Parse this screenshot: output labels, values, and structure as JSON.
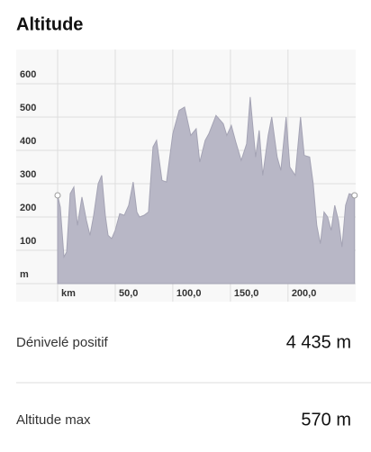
{
  "title": "Altitude",
  "chart_data": {
    "type": "area",
    "x": [
      0,
      2.3,
      5.5,
      7.8,
      10.9,
      14.1,
      17.2,
      21.1,
      25,
      28.1,
      31.3,
      35.2,
      38.3,
      41.4,
      43.8,
      46.9,
      50,
      53.9,
      57.8,
      61.7,
      65.6,
      68.8,
      71.1,
      75,
      78.9,
      82.8,
      85.9,
      90.6,
      94.5,
      100,
      105.5,
      110.2,
      115.6,
      120.3,
      123.4,
      128.1,
      131.3,
      137.5,
      143.8,
      146.9,
      150.8,
      154.7,
      159.4,
      164.1,
      167.2,
      171.9,
      175,
      178.1,
      182.8,
      185.9,
      190.6,
      193.8,
      198.4,
      201.6,
      206.3,
      210.9,
      214.1,
      218.8,
      221.9,
      225,
      228.1,
      231.3,
      234.4,
      237.5,
      240.6,
      243.8,
      246.9,
      250,
      253.1,
      257.8
    ],
    "values": [
      265,
      230,
      80,
      95,
      270,
      290,
      175,
      260,
      190,
      145,
      205,
      300,
      325,
      205,
      145,
      135,
      160,
      210,
      205,
      235,
      305,
      215,
      200,
      205,
      215,
      410,
      430,
      310,
      305,
      450,
      520,
      530,
      445,
      465,
      365,
      430,
      450,
      505,
      480,
      445,
      475,
      425,
      370,
      420,
      560,
      380,
      460,
      325,
      445,
      500,
      380,
      340,
      500,
      350,
      325,
      500,
      385,
      380,
      300,
      175,
      120,
      215,
      200,
      160,
      235,
      190,
      110,
      235,
      270,
      265
    ],
    "color": "#b8b7c6",
    "xlim": [
      0,
      258
    ],
    "ylim": [
      0,
      700
    ],
    "xticks": [
      {
        "value": 0,
        "label": "km"
      },
      {
        "value": 50,
        "label": "50,0"
      },
      {
        "value": 100,
        "label": "100,0"
      },
      {
        "value": 150,
        "label": "150,0"
      },
      {
        "value": 200,
        "label": "200,0"
      }
    ],
    "yticks": [
      {
        "value": 0,
        "label": "m"
      },
      100,
      200,
      300,
      400,
      500,
      600
    ],
    "grid": true
  },
  "stats": [
    {
      "label": "Dénivelé positif",
      "value": "4 435 m"
    },
    {
      "label": "Altitude max",
      "value": "570 m"
    }
  ]
}
